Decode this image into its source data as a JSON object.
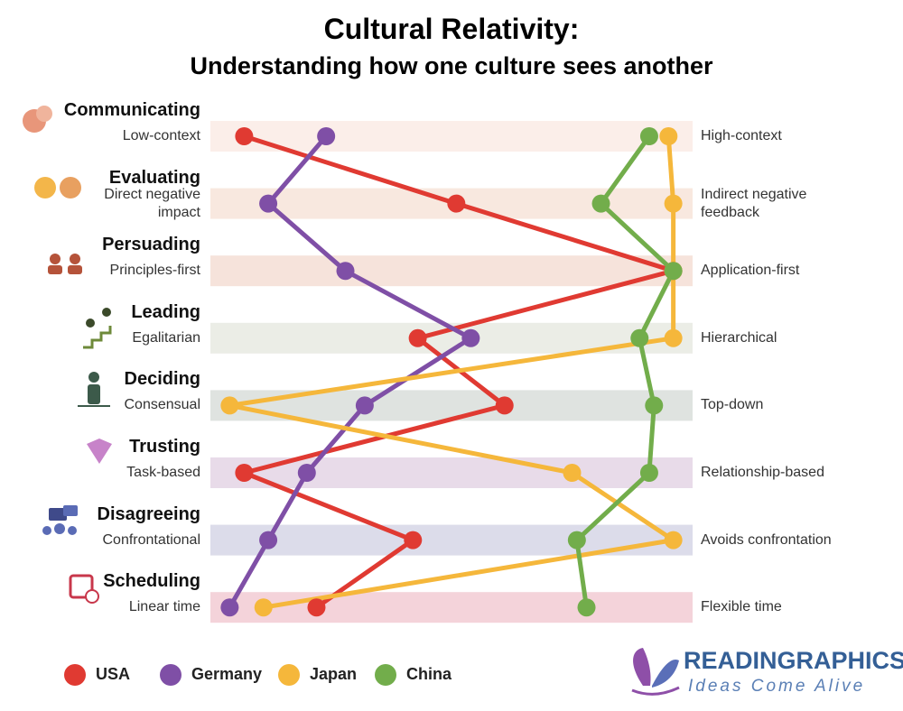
{
  "chart_data": {
    "type": "line",
    "title": "Cultural Relativity:",
    "subtitle": "Understanding how one culture sees another",
    "categories": [
      "Communicating",
      "Evaluating",
      "Persuading",
      "Leading",
      "Deciding",
      "Trusting",
      "Disagreeing",
      "Scheduling"
    ],
    "left_labels": [
      "Low-context",
      "Direct negative impact",
      "Principles-first",
      "Egalitarian",
      "Consensual",
      "Task-based",
      "Confrontational",
      "Linear time"
    ],
    "right_labels": [
      "High-context",
      "Indirect negative feedback",
      "Application-first",
      "Hierarchical",
      "Top-down",
      "Relationship-based",
      "Avoids confrontation",
      "Flexible time"
    ],
    "band_colors": [
      "#fbeee9",
      "#f8e8df",
      "#f6e3db",
      "#ebede6",
      "#dfe3e0",
      "#e8dbe9",
      "#dcdcea",
      "#f4d3da"
    ],
    "xlim": [
      0,
      100
    ],
    "series": [
      {
        "name": "USA",
        "color": "#e03a32",
        "values": [
          7,
          51,
          96,
          43,
          61,
          7,
          42,
          22
        ]
      },
      {
        "name": "Germany",
        "color": "#7f4fa6",
        "values": [
          24,
          12,
          28,
          54,
          32,
          20,
          12,
          4
        ]
      },
      {
        "name": "Japan",
        "color": "#f5b73b",
        "values": [
          95,
          96,
          96,
          96,
          4,
          75,
          96,
          11
        ]
      },
      {
        "name": "China",
        "color": "#72ad4b",
        "values": [
          91,
          81,
          96,
          89,
          92,
          91,
          76,
          78
        ]
      }
    ],
    "brand": "READINGRAPHICS",
    "tagline": "Ideas Come Alive"
  }
}
